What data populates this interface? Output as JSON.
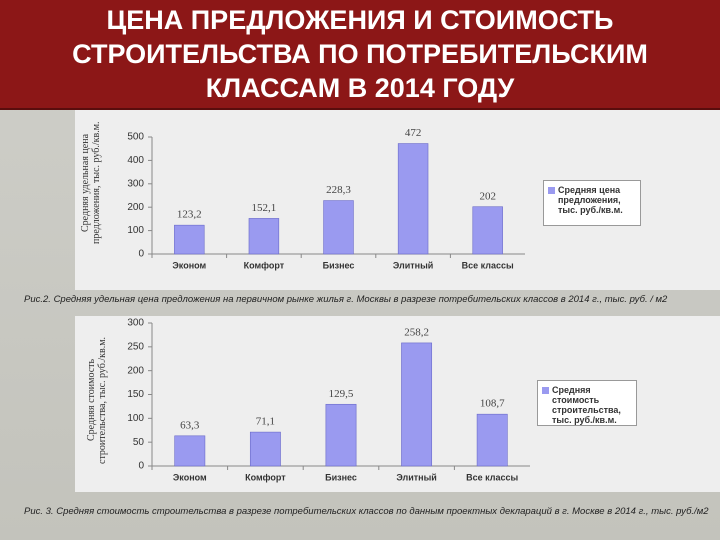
{
  "title": "ЦЕНА ПРЕДЛОЖЕНИЯ И СТОИМОСТЬ СТРОИТЕЛЬСТВА ПО ПОТРЕБИТЕЛЬСКИМ КЛАССАМ В 2014 ГОДУ",
  "chart_data": [
    {
      "type": "bar",
      "y_label": "Средняя удельная цена предложения, тыс. руб./кв.м.",
      "caption": "Рис.2. Средняя удельная цена предложения на первичном рынке жилья г. Москвы в разрезе потребительских классов в 2014 г., тыс. руб. / м2",
      "categories": [
        "Эконом",
        "Комфорт",
        "Бизнес",
        "Элитный",
        "Все классы"
      ],
      "series": [
        {
          "name": "Средняя цена предложения, тыс. руб./кв.м.",
          "color": "#9a9af0",
          "values": [
            123.2,
            152.1,
            228.3,
            472,
            202
          ],
          "value_labels": [
            "123,2",
            "152,1",
            "228,3",
            "472",
            "202"
          ]
        }
      ],
      "ylim": [
        0,
        500
      ],
      "yticks": [
        0,
        100,
        200,
        300,
        400,
        500
      ],
      "grid": false
    },
    {
      "type": "bar",
      "y_label": "Средняя стоимость строительства, тыс. руб./кв.м.",
      "caption": "Рис. 3. Средняя стоимость строительства в разрезе потребительских классов по данным проектных деклараций в г. Москве в 2014 г., тыс. руб./м2",
      "categories": [
        "Эконом",
        "Комфорт",
        "Бизнес",
        "Элитный",
        "Все классы"
      ],
      "series": [
        {
          "name": "Средняя стоимость строительства, тыс. руб./кв.м.",
          "color": "#9a9af0",
          "values": [
            63.3,
            71.1,
            129.5,
            258.2,
            108.7
          ],
          "value_labels": [
            "63,3",
            "71,1",
            "129,5",
            "258,2",
            "108,7"
          ]
        }
      ],
      "ylim": [
        0,
        300
      ],
      "yticks": [
        0,
        50,
        100,
        150,
        200,
        250,
        300
      ],
      "grid": false
    }
  ]
}
